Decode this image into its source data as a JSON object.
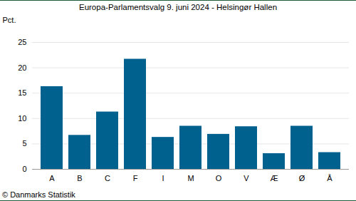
{
  "chart_data": {
    "type": "bar",
    "title": "Europa-Parlamentsvalg 9. juni 2024 - Helsingør Hallen",
    "y_label": "Pct.",
    "source": "© Danmarks Statistik",
    "categories": [
      "A",
      "B",
      "C",
      "F",
      "I",
      "M",
      "O",
      "V",
      "Æ",
      "Ø",
      "Å"
    ],
    "values": [
      16.3,
      6.7,
      11.3,
      21.7,
      6.3,
      8.5,
      6.9,
      8.4,
      3.1,
      8.5,
      3.3
    ],
    "color": "#00618f",
    "ylim": [
      0,
      25
    ],
    "yticks": [
      0,
      5,
      10,
      15,
      20,
      25
    ],
    "grid": true
  }
}
